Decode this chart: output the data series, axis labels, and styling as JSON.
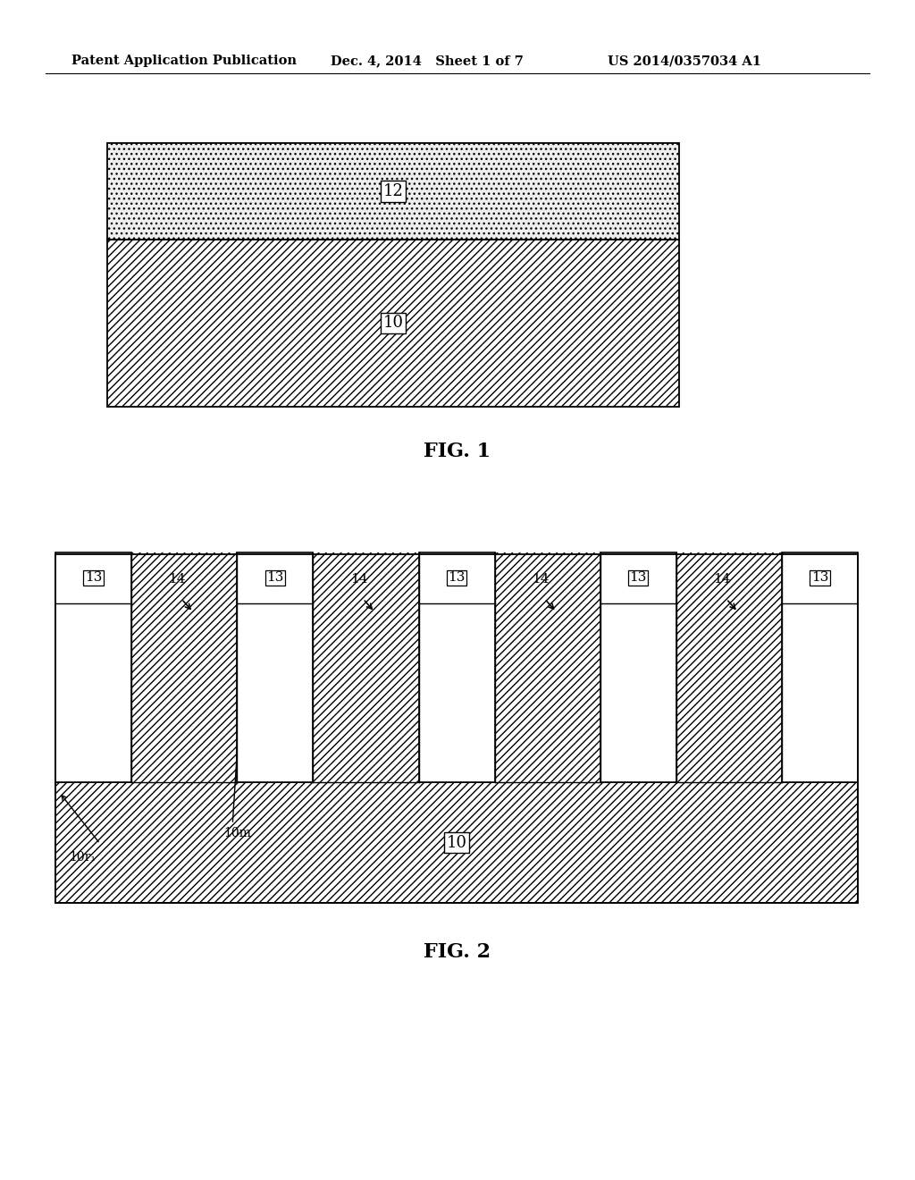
{
  "bg_color": "#ffffff",
  "page_width": 10.24,
  "page_height": 13.2,
  "header_text1": "Patent Application Publication",
  "header_text2": "Dec. 4, 2014   Sheet 1 of 7",
  "header_text3": "US 2014/0357034 A1",
  "header_fontsize": 10.5,
  "fig1_label": "FIG. 1",
  "fig2_label": "FIG. 2",
  "fig1_layer10_label": "10",
  "fig1_layer12_label": "12",
  "fig2_substrate_label": "10",
  "fig2_fin_label": "13",
  "fig2_trench_label": "14",
  "fig2_10m_label": "10m",
  "fig2_10r1_label": "10r₁"
}
